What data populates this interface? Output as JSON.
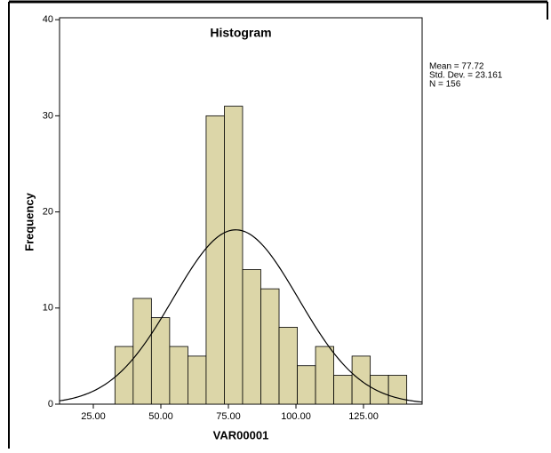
{
  "chart_data": {
    "type": "histogram",
    "title": "Histogram",
    "x_label": "VAR00001",
    "y_label": "Frequency",
    "bins": [
      33,
      39.75,
      46.5,
      53.25,
      60,
      66.75,
      73.5,
      80.25,
      87,
      93.75,
      100.5,
      107.25,
      114,
      120.75,
      127.5,
      134.25,
      141
    ],
    "values": [
      6,
      11,
      9,
      6,
      5,
      30,
      31,
      14,
      12,
      8,
      4,
      6,
      3,
      5,
      3,
      3
    ],
    "color": "#dcd6a8",
    "xlim": [
      12.5,
      146.7
    ],
    "xticks": [
      {
        "value": 25,
        "label": "25.00"
      },
      {
        "value": 50,
        "label": "50.00"
      },
      {
        "value": 75,
        "label": "75.00"
      },
      {
        "value": 100,
        "label": "100.00"
      },
      {
        "value": 125,
        "label": "125.00"
      }
    ],
    "ylim": [
      0,
      40.2
    ],
    "yticks": [
      0,
      10,
      20,
      30,
      40
    ],
    "stats": [
      {
        "value": 77.72,
        "label": "Mean = 77.72"
      },
      {
        "value": 23.161,
        "label": "Std. Dev. = 23.161"
      },
      {
        "value": 156,
        "label": "N = 156"
      }
    ],
    "normal_curve": true
  }
}
